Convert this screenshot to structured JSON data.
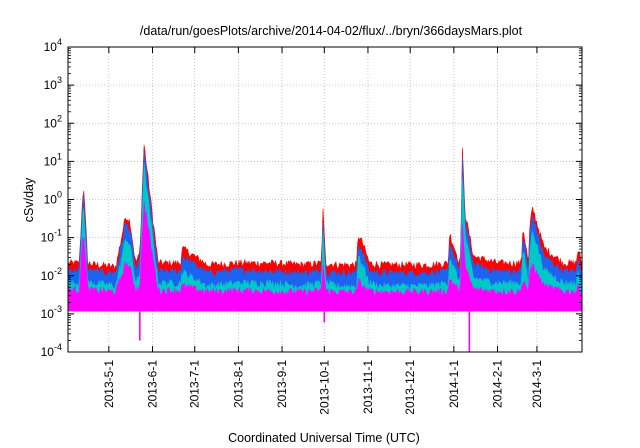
{
  "chart_data": {
    "type": "area",
    "title": "/data/run/goesPlots/archive/2014-04-02/flux/../bryn/366daysMars.plot",
    "xlabel": "Coordinated Universal Time (UTC)",
    "ylabel": "cSv/day",
    "y_scale": "log",
    "ylim": [
      0.0001,
      10000
    ],
    "xlim": [
      "2013-04-02",
      "2014-04-02"
    ],
    "grid": true,
    "legend": "none",
    "y_ticks": [
      {
        "value": 0.0001,
        "base": "10",
        "exp": "-4"
      },
      {
        "value": 0.001,
        "base": "10",
        "exp": "-3"
      },
      {
        "value": 0.01,
        "base": "10",
        "exp": "-2"
      },
      {
        "value": 0.1,
        "base": "10",
        "exp": "-1"
      },
      {
        "value": 1,
        "base": "10",
        "exp": "0"
      },
      {
        "value": 10,
        "base": "10",
        "exp": "1"
      },
      {
        "value": 100,
        "base": "10",
        "exp": "2"
      },
      {
        "value": 1000,
        "base": "10",
        "exp": "3"
      },
      {
        "value": 10000,
        "base": "10",
        "exp": "4"
      }
    ],
    "x_ticks": [
      {
        "date": "2013-05-01",
        "label": "2013-5-1"
      },
      {
        "date": "2013-06-01",
        "label": "2013-6-1"
      },
      {
        "date": "2013-07-01",
        "label": "2013-7-1"
      },
      {
        "date": "2013-08-01",
        "label": "2013-8-1"
      },
      {
        "date": "2013-09-01",
        "label": "2013-9-1"
      },
      {
        "date": "2013-10-01",
        "label": "2013-10-1"
      },
      {
        "date": "2013-11-01",
        "label": "2013-11-1"
      },
      {
        "date": "2013-12-01",
        "label": "2013-12-1"
      },
      {
        "date": "2014-01-01",
        "label": "2014-1-1"
      },
      {
        "date": "2014-02-01",
        "label": "2014-2-1"
      },
      {
        "date": "2014-03-01",
        "label": "2014-3-1"
      }
    ],
    "series": [
      {
        "color": "#ff0000",
        "x": [
          "2013-04-02",
          "2013-04-10",
          "2013-04-13",
          "2013-04-16",
          "2013-04-22",
          "2013-05-06",
          "2013-05-13",
          "2013-05-16",
          "2013-05-20",
          "2013-05-23",
          "2013-05-26",
          "2013-06-05",
          "2013-06-21",
          "2013-06-22",
          "2013-07-10",
          "2013-08-01",
          "2013-08-25",
          "2013-09-15",
          "2013-09-29",
          "2013-09-30",
          "2013-10-02",
          "2013-10-10",
          "2013-10-24",
          "2013-10-25",
          "2013-10-28",
          "2013-11-02",
          "2013-11-10",
          "2013-11-20",
          "2013-12-15",
          "2013-12-28",
          "2013-12-29",
          "2014-01-05",
          "2014-01-06",
          "2014-01-07",
          "2014-01-09",
          "2014-01-15",
          "2014-02-01",
          "2014-02-15",
          "2014-02-18",
          "2014-02-19",
          "2014-02-23",
          "2014-02-24",
          "2014-02-26",
          "2014-02-28",
          "2014-03-06",
          "2014-03-20",
          "2014-03-29",
          "2014-03-30",
          "2014-04-02"
        ],
        "y": [
          0.02,
          0.02,
          2.6,
          0.02,
          0.018,
          0.016,
          0.35,
          0.25,
          0.02,
          0.035,
          26,
          0.02,
          0.02,
          0.05,
          0.018,
          0.02,
          0.02,
          0.018,
          0.02,
          0.55,
          0.02,
          0.018,
          0.018,
          0.11,
          0.07,
          0.02,
          0.018,
          0.018,
          0.018,
          0.02,
          0.12,
          0.02,
          0.05,
          20,
          0.4,
          0.03,
          0.02,
          0.02,
          0.02,
          0.18,
          0.02,
          0.2,
          0.55,
          0.3,
          0.05,
          0.02,
          0.02,
          0.045,
          0.02
        ]
      },
      {
        "color": "#1e62f0",
        "x": [
          "2013-04-02",
          "2013-04-10",
          "2013-04-13",
          "2013-04-16",
          "2013-04-22",
          "2013-05-06",
          "2013-05-13",
          "2013-05-16",
          "2013-05-20",
          "2013-05-23",
          "2013-05-26",
          "2013-06-05",
          "2013-06-21",
          "2013-06-22",
          "2013-07-10",
          "2013-08-01",
          "2013-08-25",
          "2013-09-15",
          "2013-09-29",
          "2013-09-30",
          "2013-10-02",
          "2013-10-10",
          "2013-10-24",
          "2013-10-25",
          "2013-10-28",
          "2013-11-02",
          "2013-11-10",
          "2013-11-20",
          "2013-12-15",
          "2013-12-28",
          "2013-12-29",
          "2014-01-05",
          "2014-01-06",
          "2014-01-07",
          "2014-01-09",
          "2014-01-15",
          "2014-02-01",
          "2014-02-15",
          "2014-02-18",
          "2014-02-19",
          "2014-02-23",
          "2014-02-24",
          "2014-02-26",
          "2014-02-28",
          "2014-03-06",
          "2014-03-20",
          "2014-03-29",
          "2014-03-30",
          "2014-04-02"
        ],
        "y": [
          0.013,
          0.013,
          1.6,
          0.013,
          0.012,
          0.011,
          0.22,
          0.15,
          0.013,
          0.02,
          16,
          0.012,
          0.012,
          0.03,
          0.011,
          0.013,
          0.012,
          0.011,
          0.012,
          0.32,
          0.012,
          0.011,
          0.011,
          0.065,
          0.04,
          0.012,
          0.011,
          0.011,
          0.011,
          0.012,
          0.07,
          0.012,
          0.03,
          12,
          0.25,
          0.018,
          0.012,
          0.012,
          0.012,
          0.11,
          0.012,
          0.12,
          0.35,
          0.18,
          0.03,
          0.012,
          0.012,
          0.025,
          0.012
        ]
      },
      {
        "color": "#00c8c8",
        "x": [
          "2013-04-02",
          "2013-04-10",
          "2013-04-13",
          "2013-04-16",
          "2013-04-22",
          "2013-05-06",
          "2013-05-13",
          "2013-05-16",
          "2013-05-20",
          "2013-05-23",
          "2013-05-26",
          "2013-06-05",
          "2013-06-21",
          "2013-06-22",
          "2013-07-10",
          "2013-08-01",
          "2013-08-25",
          "2013-09-15",
          "2013-09-29",
          "2013-09-30",
          "2013-10-02",
          "2013-10-10",
          "2013-10-24",
          "2013-10-25",
          "2013-10-28",
          "2013-11-02",
          "2013-11-10",
          "2013-11-20",
          "2013-12-15",
          "2013-12-28",
          "2013-12-29",
          "2014-01-05",
          "2014-01-06",
          "2014-01-07",
          "2014-01-09",
          "2014-01-15",
          "2014-02-01",
          "2014-02-15",
          "2014-02-18",
          "2014-02-19",
          "2014-02-23",
          "2014-02-24",
          "2014-02-26",
          "2014-02-28",
          "2014-03-06",
          "2014-03-20",
          "2014-03-29",
          "2014-03-30",
          "2014-04-02"
        ],
        "y": [
          0.006,
          0.006,
          0.7,
          0.006,
          0.006,
          0.005,
          0.09,
          0.06,
          0.006,
          0.009,
          7,
          0.006,
          0.006,
          0.012,
          0.005,
          0.006,
          0.006,
          0.005,
          0.006,
          0.14,
          0.006,
          0.005,
          0.005,
          0.03,
          0.018,
          0.006,
          0.005,
          0.005,
          0.005,
          0.006,
          0.03,
          0.006,
          0.013,
          5,
          0.11,
          0.008,
          0.006,
          0.006,
          0.006,
          0.05,
          0.006,
          0.05,
          0.15,
          0.08,
          0.013,
          0.006,
          0.006,
          0.011,
          0.006
        ]
      },
      {
        "color": "#ff00ff",
        "x": [
          "2013-04-02",
          "2013-04-10",
          "2013-04-13",
          "2013-04-16",
          "2013-04-22",
          "2013-05-06",
          "2013-05-13",
          "2013-05-16",
          "2013-05-20",
          "2013-05-23",
          "2013-05-26",
          "2013-06-05",
          "2013-06-21",
          "2013-06-22",
          "2013-07-10",
          "2013-08-01",
          "2013-08-25",
          "2013-09-15",
          "2013-09-29",
          "2013-09-30",
          "2013-10-02",
          "2013-10-10",
          "2013-10-24",
          "2013-10-25",
          "2013-10-28",
          "2013-11-02",
          "2013-11-10",
          "2013-11-20",
          "2013-12-15",
          "2013-12-28",
          "2013-12-29",
          "2014-01-05",
          "2014-01-06",
          "2014-01-07",
          "2014-01-09",
          "2014-01-15",
          "2014-02-01",
          "2014-02-15",
          "2014-02-18",
          "2014-02-19",
          "2014-02-23",
          "2014-02-24",
          "2014-02-26",
          "2014-02-28",
          "2014-03-06",
          "2014-03-20",
          "2014-03-29",
          "2014-03-30",
          "2014-04-02"
        ],
        "y": [
          0.004,
          0.004,
          0.15,
          0.004,
          0.0038,
          0.0035,
          0.02,
          0.015,
          0.004,
          0.005,
          0.8,
          0.0038,
          0.0038,
          0.005,
          0.0035,
          0.0038,
          0.0036,
          0.0035,
          0.0037,
          0.02,
          0.0037,
          0.0035,
          0.0035,
          0.007,
          0.005,
          0.0037,
          0.0035,
          0.0035,
          0.0035,
          0.0036,
          0.008,
          0.0036,
          0.005,
          0.3,
          0.015,
          0.004,
          0.0036,
          0.0036,
          0.0036,
          0.008,
          0.0036,
          0.01,
          0.02,
          0.012,
          0.005,
          0.0036,
          0.0036,
          0.005,
          0.0036
        ],
        "floor": 0.0012,
        "dips": [
          {
            "x": "2013-05-23",
            "y": 0.0002
          },
          {
            "x": "2013-10-01",
            "y": 0.0006
          },
          {
            "x": "2014-01-12",
            "y": 0.0001
          }
        ]
      }
    ]
  }
}
